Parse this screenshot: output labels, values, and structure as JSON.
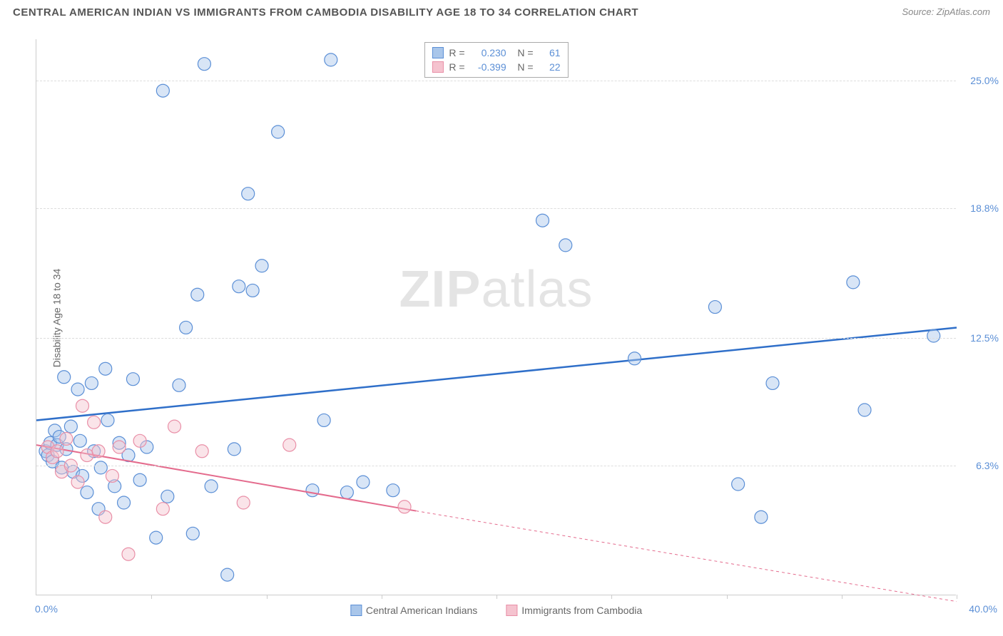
{
  "title": "CENTRAL AMERICAN INDIAN VS IMMIGRANTS FROM CAMBODIA DISABILITY AGE 18 TO 34 CORRELATION CHART",
  "source_label": "Source: ",
  "source_value": "ZipAtlas.com",
  "watermark_bold": "ZIP",
  "watermark_rest": "atlas",
  "chart": {
    "type": "scatter",
    "ylabel": "Disability Age 18 to 34",
    "background_color": "#ffffff",
    "grid_color": "#dddddd",
    "axis_color": "#cccccc",
    "x": {
      "min": 0.0,
      "max": 40.0,
      "min_label": "0.0%",
      "max_label": "40.0%",
      "nticks": 8
    },
    "y": {
      "min": 0.0,
      "max": 27.0,
      "ticks": [
        6.3,
        12.5,
        18.8,
        25.0
      ],
      "tick_labels": [
        "6.3%",
        "12.5%",
        "18.8%",
        "25.0%"
      ]
    },
    "marker_radius": 9,
    "series": [
      {
        "key": "blue",
        "name": "Central American Indians",
        "fill": "#a9c6ea",
        "stroke": "#5b8fd6",
        "R": "0.230",
        "N": "61",
        "trend": {
          "solid": [
            [
              0.0,
              8.5
            ],
            [
              40.0,
              13.0
            ]
          ],
          "dash": null,
          "color": "#2f6fc9",
          "width": 2.5
        },
        "points": [
          [
            0.4,
            7.0
          ],
          [
            0.5,
            6.8
          ],
          [
            0.6,
            7.4
          ],
          [
            0.7,
            6.5
          ],
          [
            0.8,
            8.0
          ],
          [
            0.9,
            7.3
          ],
          [
            1.0,
            7.7
          ],
          [
            1.1,
            6.2
          ],
          [
            1.2,
            10.6
          ],
          [
            1.3,
            7.1
          ],
          [
            1.5,
            8.2
          ],
          [
            1.6,
            6.0
          ],
          [
            1.8,
            10.0
          ],
          [
            1.9,
            7.5
          ],
          [
            2.0,
            5.8
          ],
          [
            2.2,
            5.0
          ],
          [
            2.4,
            10.3
          ],
          [
            2.5,
            7.0
          ],
          [
            2.7,
            4.2
          ],
          [
            2.8,
            6.2
          ],
          [
            3.0,
            11.0
          ],
          [
            3.1,
            8.5
          ],
          [
            3.4,
            5.3
          ],
          [
            3.6,
            7.4
          ],
          [
            3.8,
            4.5
          ],
          [
            4.0,
            6.8
          ],
          [
            4.2,
            10.5
          ],
          [
            4.5,
            5.6
          ],
          [
            4.8,
            7.2
          ],
          [
            5.2,
            2.8
          ],
          [
            5.5,
            24.5
          ],
          [
            5.7,
            4.8
          ],
          [
            6.2,
            10.2
          ],
          [
            6.5,
            13.0
          ],
          [
            6.8,
            3.0
          ],
          [
            7.0,
            14.6
          ],
          [
            7.3,
            25.8
          ],
          [
            7.6,
            5.3
          ],
          [
            8.3,
            1.0
          ],
          [
            8.6,
            7.1
          ],
          [
            8.8,
            15.0
          ],
          [
            9.2,
            19.5
          ],
          [
            9.4,
            14.8
          ],
          [
            9.8,
            16.0
          ],
          [
            10.5,
            22.5
          ],
          [
            12.0,
            5.1
          ],
          [
            12.5,
            8.5
          ],
          [
            12.8,
            26.0
          ],
          [
            13.5,
            5.0
          ],
          [
            14.2,
            5.5
          ],
          [
            15.5,
            5.1
          ],
          [
            22.0,
            18.2
          ],
          [
            23.0,
            17.0
          ],
          [
            26.0,
            11.5
          ],
          [
            29.5,
            14.0
          ],
          [
            30.5,
            5.4
          ],
          [
            31.5,
            3.8
          ],
          [
            32.0,
            10.3
          ],
          [
            35.5,
            15.2
          ],
          [
            36.0,
            9.0
          ],
          [
            39.0,
            12.6
          ]
        ]
      },
      {
        "key": "pink",
        "name": "Immigrants from Cambodia",
        "fill": "#f5c3cf",
        "stroke": "#e98fa7",
        "R": "-0.399",
        "N": "22",
        "trend": {
          "solid": [
            [
              0.0,
              7.3
            ],
            [
              16.5,
              4.1
            ]
          ],
          "dash": [
            [
              16.5,
              4.1
            ],
            [
              40.0,
              -0.3
            ]
          ],
          "color": "#e46b8d",
          "width": 2.0
        },
        "points": [
          [
            0.5,
            7.2
          ],
          [
            0.7,
            6.7
          ],
          [
            0.9,
            7.0
          ],
          [
            1.1,
            6.0
          ],
          [
            1.3,
            7.6
          ],
          [
            1.5,
            6.3
          ],
          [
            1.8,
            5.5
          ],
          [
            2.0,
            9.2
          ],
          [
            2.2,
            6.8
          ],
          [
            2.5,
            8.4
          ],
          [
            2.7,
            7.0
          ],
          [
            3.0,
            3.8
          ],
          [
            3.3,
            5.8
          ],
          [
            3.6,
            7.2
          ],
          [
            4.0,
            2.0
          ],
          [
            4.5,
            7.5
          ],
          [
            5.5,
            4.2
          ],
          [
            6.0,
            8.2
          ],
          [
            7.2,
            7.0
          ],
          [
            9.0,
            4.5
          ],
          [
            11.0,
            7.3
          ],
          [
            16.0,
            4.3
          ]
        ]
      }
    ]
  }
}
